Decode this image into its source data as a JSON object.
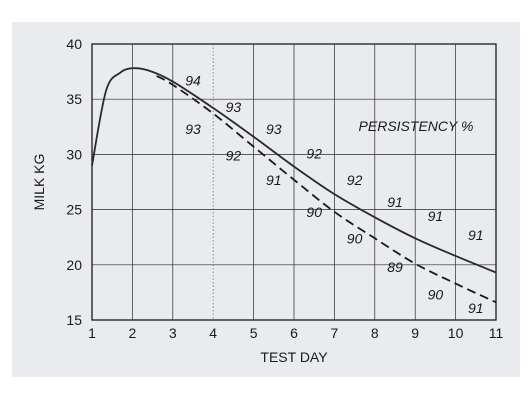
{
  "chart_data": {
    "type": "line",
    "xlabel": "TEST DAY",
    "ylabel": "MILK KG",
    "xlim": [
      1,
      11
    ],
    "ylim": [
      15,
      40
    ],
    "x_ticks": [
      "1",
      "2",
      "3",
      "4",
      "5",
      "6",
      "7",
      "8",
      "9",
      "10",
      "11"
    ],
    "y_ticks": [
      "15",
      "20",
      "25",
      "30",
      "35",
      "40"
    ],
    "grid": true,
    "legend_title": "PERSISTENCY %",
    "legend_placement": "top-right",
    "series": [
      {
        "style": "solid",
        "x": [
          1,
          1.35,
          1.7,
          2.0,
          2.4,
          3.0,
          4.0,
          5.0,
          6.0,
          7.0,
          8.0,
          9.0,
          10.0,
          11.0
        ],
        "y": [
          29,
          35.8,
          37.4,
          37.8,
          37.6,
          36.6,
          34.2,
          31.6,
          28.9,
          26.4,
          24.3,
          22.4,
          20.8,
          19.3
        ]
      },
      {
        "style": "dashed",
        "x": [
          2.6,
          3.0,
          4.0,
          5.0,
          6.0,
          7.0,
          8.0,
          9.0,
          10.0,
          11.0
        ],
        "y": [
          37.1,
          36.3,
          33.7,
          30.7,
          27.7,
          24.8,
          22.4,
          20.1,
          18.3,
          16.6
        ]
      }
    ],
    "annotations": [
      {
        "text": "94",
        "x": 3.5,
        "y": 36.7
      },
      {
        "text": "93",
        "x": 4.5,
        "y": 34.3
      },
      {
        "text": "93",
        "x": 3.5,
        "y": 32.3
      },
      {
        "text": "93",
        "x": 5.5,
        "y": 32.3
      },
      {
        "text": "92",
        "x": 4.5,
        "y": 29.9
      },
      {
        "text": "92",
        "x": 6.5,
        "y": 30.1
      },
      {
        "text": "91",
        "x": 5.5,
        "y": 27.7
      },
      {
        "text": "92",
        "x": 7.5,
        "y": 27.7
      },
      {
        "text": "90",
        "x": 6.5,
        "y": 24.8
      },
      {
        "text": "91",
        "x": 8.5,
        "y": 25.7
      },
      {
        "text": "90",
        "x": 7.5,
        "y": 22.4
      },
      {
        "text": "91",
        "x": 9.5,
        "y": 24.4
      },
      {
        "text": "89",
        "x": 8.5,
        "y": 19.8
      },
      {
        "text": "91",
        "x": 10.5,
        "y": 22.7
      },
      {
        "text": "90",
        "x": 9.5,
        "y": 17.3
      },
      {
        "text": "91",
        "x": 10.5,
        "y": 16.1
      }
    ]
  }
}
